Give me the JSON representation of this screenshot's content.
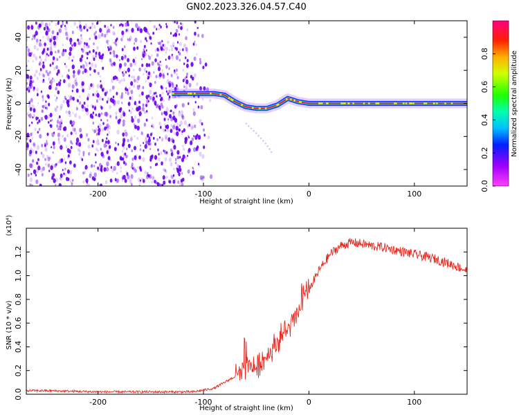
{
  "title": "GN02.2023.326.04.57.C40",
  "colors": {
    "spectrogram_dots": "#6a00f0",
    "snr_line": "#e8281e",
    "frame": "#000000"
  },
  "colorbar": {
    "label": "Normalized spectral amplitude",
    "ticks": [
      "0.0",
      "0.2",
      "0.4",
      "0.6",
      "0.8"
    ],
    "tick_values": [
      0.0,
      0.2,
      0.4,
      0.6,
      0.8
    ],
    "range": [
      0.0,
      1.0
    ],
    "colormap": "rainbow (magenta-blue-cyan-green-yellow-red-pink)"
  },
  "chart_data": [
    {
      "type": "heatmap",
      "name": "spectrogram",
      "xlabel": "Height of straight line (km)",
      "ylabel": "Frequency (Hz)",
      "xlim": [
        -268,
        150
      ],
      "ylim": [
        -50,
        50
      ],
      "xticks": [
        -200,
        -100,
        0,
        100
      ],
      "xtick_labels": [
        "-200",
        "-100",
        "0",
        "100"
      ],
      "yticks": [
        -40,
        -20,
        0,
        20,
        40
      ],
      "ytick_labels": [
        "-40",
        "-20",
        "0",
        "20",
        "40"
      ],
      "noise_region_x": [
        -268,
        -100
      ],
      "ridge": {
        "x": [
          -130,
          -120,
          -110,
          -100,
          -90,
          -80,
          -70,
          -60,
          -50,
          -40,
          -30,
          -25,
          -20,
          -10,
          0,
          20,
          50,
          80,
          100,
          150
        ],
        "y": [
          6,
          6,
          6,
          6,
          6,
          5,
          1,
          -2,
          -3,
          -3,
          -1,
          1,
          3,
          1,
          0,
          0,
          0,
          0,
          0,
          0
        ]
      },
      "secondary_tail": {
        "x": [
          -60,
          -50,
          -40,
          -35
        ],
        "y": [
          -12,
          -18,
          -25,
          -30
        ]
      }
    },
    {
      "type": "line",
      "name": "snr",
      "xlabel": "Height of straight line (km)",
      "ylabel": "SNR (10 * v/v)",
      "yscale_label": "(x10⁴)",
      "xlim": [
        -268,
        150
      ],
      "ylim": [
        0,
        1.4
      ],
      "xticks": [
        -200,
        -100,
        0,
        100
      ],
      "xtick_labels": [
        "-200",
        "-100",
        "0",
        "100"
      ],
      "yticks": [
        0.0,
        0.2,
        0.4,
        0.6,
        0.8,
        1.0,
        1.2
      ],
      "ytick_labels": [
        "0.0",
        "0.2",
        "0.4",
        "0.6",
        "0.8",
        "1.0",
        "1.2"
      ],
      "x": [
        -268,
        -250,
        -200,
        -150,
        -110,
        -90,
        -80,
        -70,
        -60,
        -55,
        -50,
        -45,
        -40,
        -35,
        -30,
        -25,
        -20,
        -15,
        -10,
        -5,
        0,
        10,
        20,
        30,
        40,
        50,
        60,
        70,
        80,
        90,
        100,
        110,
        120,
        130,
        140,
        150
      ],
      "y": [
        0.03,
        0.03,
        0.02,
        0.02,
        0.02,
        0.05,
        0.1,
        0.15,
        0.2,
        0.25,
        0.22,
        0.28,
        0.32,
        0.38,
        0.45,
        0.5,
        0.55,
        0.6,
        0.7,
        0.8,
        0.88,
        1.05,
        1.18,
        1.25,
        1.28,
        1.27,
        1.25,
        1.24,
        1.22,
        1.2,
        1.18,
        1.16,
        1.14,
        1.11,
        1.08,
        1.04
      ]
    }
  ]
}
